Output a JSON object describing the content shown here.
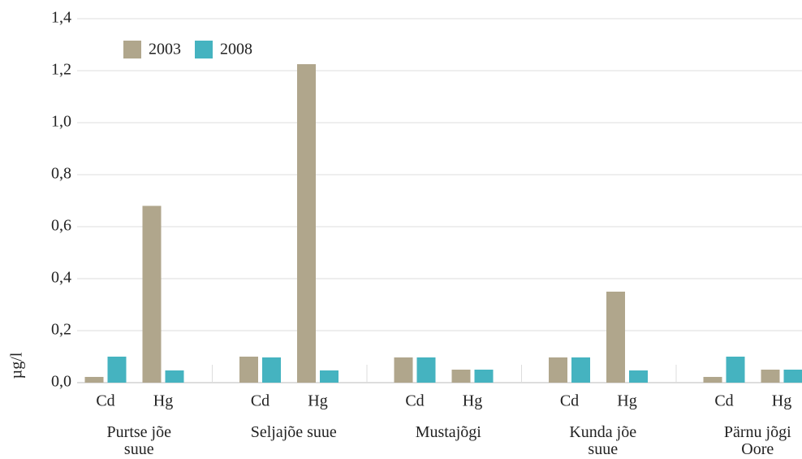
{
  "chart_data": {
    "type": "bar",
    "ylabel": "µg/l",
    "categories": [
      "Cd",
      "Hg",
      "Cd",
      "Hg",
      "Cd",
      "Hg",
      "Cd",
      "Hg",
      "Cd",
      "Hg"
    ],
    "groups": [
      "Purtse jõe suue",
      "Seljajõe suue",
      "Mustajõgi",
      "Kunda jõe suue",
      "Pärnu jõgi Oore"
    ],
    "series": [
      {
        "name": "2003",
        "color": "#b0a68c",
        "values": [
          0.022,
          0.68,
          0.1,
          1.225,
          0.097,
          0.05,
          0.097,
          0.35,
          0.022,
          0.05
        ]
      },
      {
        "name": "2008",
        "color": "#45b3c0",
        "values": [
          0.1,
          0.047,
          0.097,
          0.047,
          0.097,
          0.05,
          0.097,
          0.047,
          0.1,
          0.05
        ]
      }
    ],
    "ylim": [
      0,
      1.4
    ],
    "yticks": [
      {
        "value": 0,
        "label": "0,0"
      },
      {
        "value": 0.2,
        "label": "0,2"
      },
      {
        "value": 0.4,
        "label": "0,4"
      },
      {
        "value": 0.6,
        "label": "0,6"
      },
      {
        "value": 0.8,
        "label": "0,8"
      },
      {
        "value": 1.0,
        "label": "1,0"
      },
      {
        "value": 1.2,
        "label": "1,2"
      },
      {
        "value": 1.4,
        "label": "1,4"
      }
    ],
    "grid": true
  }
}
